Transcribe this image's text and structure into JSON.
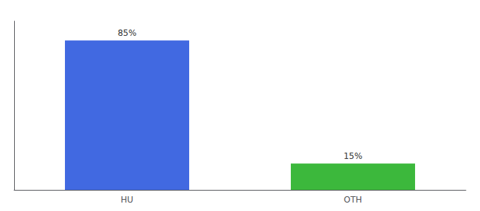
{
  "chart_data": {
    "type": "bar",
    "categories": [
      "HU",
      "OTH"
    ],
    "values": [
      85,
      15
    ],
    "colors": [
      "#4169e1",
      "#3cb83c"
    ],
    "ylim": [
      0,
      96
    ],
    "data_labels": true,
    "value_labels": [
      "85%",
      "15%"
    ],
    "tick_labels": "x",
    "grid": false
  }
}
